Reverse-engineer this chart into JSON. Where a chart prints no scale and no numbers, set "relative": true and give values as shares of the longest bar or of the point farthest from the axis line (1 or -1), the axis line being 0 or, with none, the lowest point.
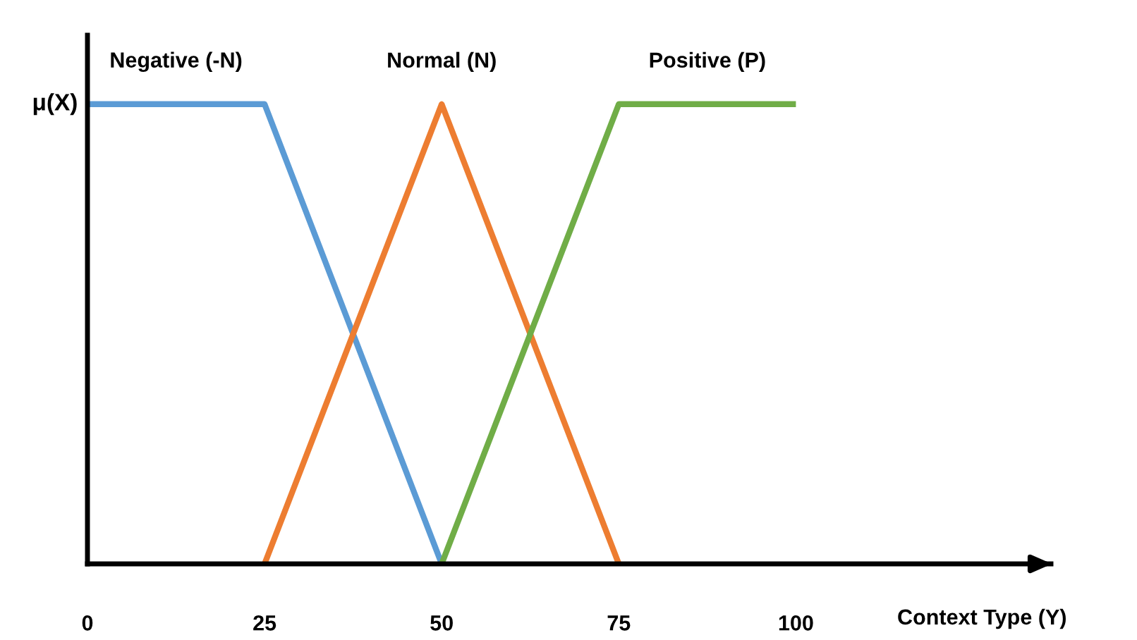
{
  "chart_data": {
    "type": "line",
    "relative": true,
    "xlabel": "Context Type (Y)",
    "ylabel": "μ(X)",
    "xlim": [
      0,
      136
    ],
    "xticks": [
      0,
      25,
      50,
      75,
      100
    ],
    "grid": false,
    "legend": false,
    "marker": "none",
    "line_style": "solid",
    "series": [
      {
        "name": "Negative (-N)",
        "color": "#5b9bd5",
        "x": [
          0,
          25,
          50
        ],
        "values": [
          1,
          1,
          0
        ]
      },
      {
        "name": "Normal (N)",
        "color": "#ed7d31",
        "x": [
          25,
          50,
          75
        ],
        "values": [
          0,
          1,
          0
        ]
      },
      {
        "name": "Positive (P)",
        "color": "#70ad47",
        "x": [
          50,
          75,
          100
        ],
        "values": [
          0,
          1,
          1
        ]
      }
    ]
  }
}
